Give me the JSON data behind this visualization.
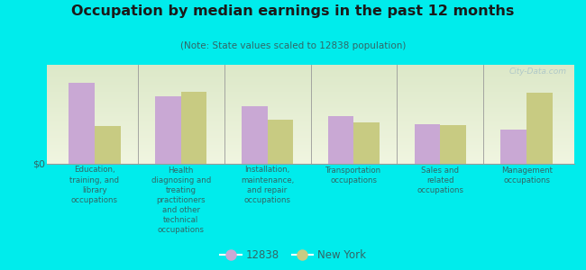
{
  "title": "Occupation by median earnings in the past 12 months",
  "subtitle": "(Note: State values scaled to 12838 population)",
  "background_color": "#00ecec",
  "plot_bg_top": "#dce8c8",
  "plot_bg_bottom": "#f0f5e0",
  "bar_color_local": "#c9a8d4",
  "bar_color_state": "#c8cb82",
  "categories": [
    "Education,\ntraining, and\nlibrary\noccupations",
    "Health\ndiagnosing and\ntreating\npractitioners\nand other\ntechnical\noccupations",
    "Installation,\nmaintenance,\nand repair\noccupations",
    "Transportation\noccupations",
    "Sales and\nrelated\noccupations",
    "Management\noccupations"
  ],
  "values_local": [
    0.82,
    0.68,
    0.58,
    0.48,
    0.4,
    0.34
  ],
  "values_state": [
    0.38,
    0.73,
    0.44,
    0.42,
    0.39,
    0.72
  ],
  "ymax": 1.0,
  "ylabel": "$0",
  "legend_local": "12838",
  "legend_state": "New York",
  "watermark": "City-Data.com",
  "title_color": "#1a1a1a",
  "subtitle_color": "#336666",
  "label_color": "#336666",
  "watermark_color": "#b0c8c8"
}
